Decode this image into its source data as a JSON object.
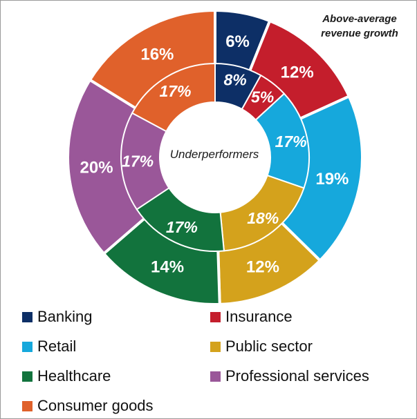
{
  "chart_data": {
    "type": "pie",
    "variant": "double-donut",
    "categories": [
      "Banking",
      "Insurance",
      "Retail",
      "Public sector",
      "Healthcare",
      "Professional services",
      "Consumer goods"
    ],
    "colors": [
      "#0d2f66",
      "#c41e2c",
      "#16a8dc",
      "#d4a21c",
      "#12733d",
      "#9a5799",
      "#e0612b"
    ],
    "series": [
      {
        "name": "Above-average revenue growth",
        "ring": "outer",
        "values": [
          6,
          12,
          19,
          12,
          14,
          20,
          16
        ],
        "labels": [
          "6%",
          "12%",
          "19%",
          "12%",
          "14%",
          "20%",
          "16%"
        ]
      },
      {
        "name": "Underperformers",
        "ring": "inner",
        "values": [
          8,
          5,
          17,
          18,
          17,
          17,
          17
        ],
        "labels": [
          "8%",
          "5%",
          "17%",
          "18%",
          "17%",
          "17%",
          "17%"
        ]
      }
    ],
    "outer_title_lines": [
      "Above-average",
      "revenue growth"
    ],
    "center_label": "Underperformers",
    "legend_position": "bottom"
  }
}
